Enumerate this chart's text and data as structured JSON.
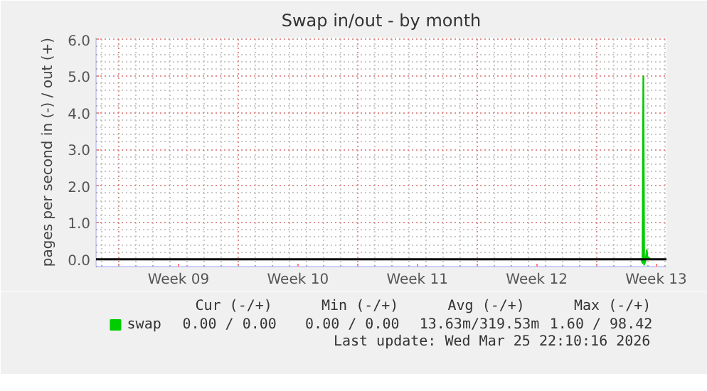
{
  "chart_data": {
    "type": "line",
    "title": "Swap in/out - by month",
    "ylabel": "pages per second in (-) / out (+)",
    "x": [
      "2026-03-25T12:00",
      "2026-03-25T15:00",
      "2026-03-25T16:50",
      "2026-03-25T18:00",
      "2026-03-25T19:10",
      "2026-03-25T20:50",
      "2026-03-25T22:50",
      "2026-03-26T00:00",
      "2026-03-26T01:10",
      "2026-03-26T03:40"
    ],
    "series": [
      {
        "name": "swap",
        "color": "#00cc00",
        "values": [
          0,
          0,
          -0.1,
          5.0,
          -0.15,
          -0.05,
          0.25,
          0,
          0.05,
          0
        ]
      }
    ],
    "xlim": [
      "2026-02-21T16:00",
      "2026-03-27T02:30"
    ],
    "xticks": [
      {
        "value": "2026-02-23",
        "label": null
      },
      {
        "value": "2026-03-02",
        "label": null
      },
      {
        "value": "2026-03-09",
        "label": null
      },
      {
        "value": "2026-03-16",
        "label": null
      },
      {
        "value": "2026-03-23",
        "label": null
      },
      {
        "value": "2026-02-26T12:00",
        "label": "Week 09"
      },
      {
        "value": "2026-03-05T12:00",
        "label": "Week 10"
      },
      {
        "value": "2026-03-12T12:00",
        "label": "Week 11"
      },
      {
        "value": "2026-03-19T12:00",
        "label": "Week 12"
      },
      {
        "value": "2026-03-26T12:00",
        "label": "Week 13"
      }
    ],
    "ylim": [
      -0.2,
      6.05
    ],
    "yticks": [
      {
        "value": 0,
        "label": "0.0"
      },
      {
        "value": 1,
        "label": "1.0"
      },
      {
        "value": 2,
        "label": "2.0"
      },
      {
        "value": 3,
        "label": "3.0"
      },
      {
        "value": 4,
        "label": "4.0"
      },
      {
        "value": 5,
        "label": "5.0"
      },
      {
        "value": 6,
        "label": "6.0"
      }
    ],
    "ref_lines": [
      {
        "axis": "y",
        "value": 0,
        "color": "#000000"
      }
    ],
    "grid": true,
    "legend": "bottom left",
    "marker": "none",
    "line_style": "solid",
    "annotations": [
      "Cur (-/+)",
      "Min (-/+)",
      "Avg (-/+)",
      "Max (-/+)",
      "0.00 /  0.00",
      "0.00 /  0.00",
      "13.63m/319.53m",
      "1.60 / 98.42",
      "Last update: Wed Mar 25 22:10:16 2026"
    ]
  }
}
